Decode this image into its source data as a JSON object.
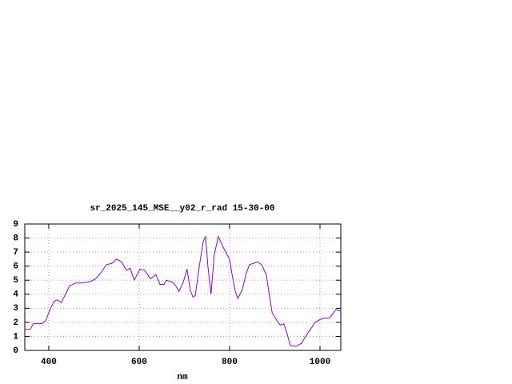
{
  "chart_data": {
    "type": "line",
    "title": "sr_2025_145_MSE__y02_r_rad 15-30-00",
    "x_label": "nm",
    "x": [
      347,
      359,
      366,
      384,
      393,
      404,
      412,
      419,
      428,
      437,
      446,
      460,
      474,
      492,
      504,
      517,
      527,
      540,
      550,
      561,
      572,
      580,
      589,
      602,
      612,
      625,
      637,
      646,
      655,
      660,
      674,
      681,
      688,
      697,
      706,
      713,
      719,
      724,
      733,
      742,
      747,
      752,
      759,
      766,
      775,
      788,
      800,
      805,
      812,
      818,
      828,
      837,
      844,
      853,
      862,
      871,
      881,
      894,
      903,
      912,
      920,
      929,
      934,
      947,
      959,
      968,
      979,
      989,
      1000,
      1011,
      1021,
      1028,
      1035,
      1046
    ],
    "series": [
      {
        "color": "#9400d3",
        "values": [
          1.5,
          1.5,
          1.9,
          1.9,
          2.1,
          3.0,
          3.5,
          3.6,
          3.4,
          4.0,
          4.6,
          4.8,
          4.8,
          4.9,
          5.1,
          5.6,
          6.1,
          6.2,
          6.5,
          6.3,
          5.7,
          5.85,
          5.0,
          5.8,
          5.7,
          5.1,
          5.4,
          4.7,
          4.7,
          5.0,
          4.85,
          4.6,
          4.2,
          4.8,
          5.8,
          4.3,
          3.8,
          3.9,
          6.0,
          7.8,
          8.1,
          6.0,
          4.0,
          6.8,
          8.1,
          7.2,
          6.5,
          5.5,
          4.3,
          3.7,
          4.3,
          5.5,
          6.1,
          6.2,
          6.3,
          6.1,
          5.4,
          2.7,
          2.2,
          1.8,
          1.9,
          1.0,
          0.35,
          0.3,
          0.5,
          1.0,
          1.5,
          2.0,
          2.2,
          2.3,
          2.3,
          2.6,
          2.9,
          2.8
        ]
      }
    ],
    "xlim": [
      347,
      1046
    ],
    "ylim": [
      0,
      9
    ],
    "xticks": [
      400,
      600,
      800,
      1000
    ],
    "yticks": [
      0,
      1,
      2,
      3,
      4,
      5,
      6,
      7,
      8,
      9
    ],
    "grid": true
  }
}
